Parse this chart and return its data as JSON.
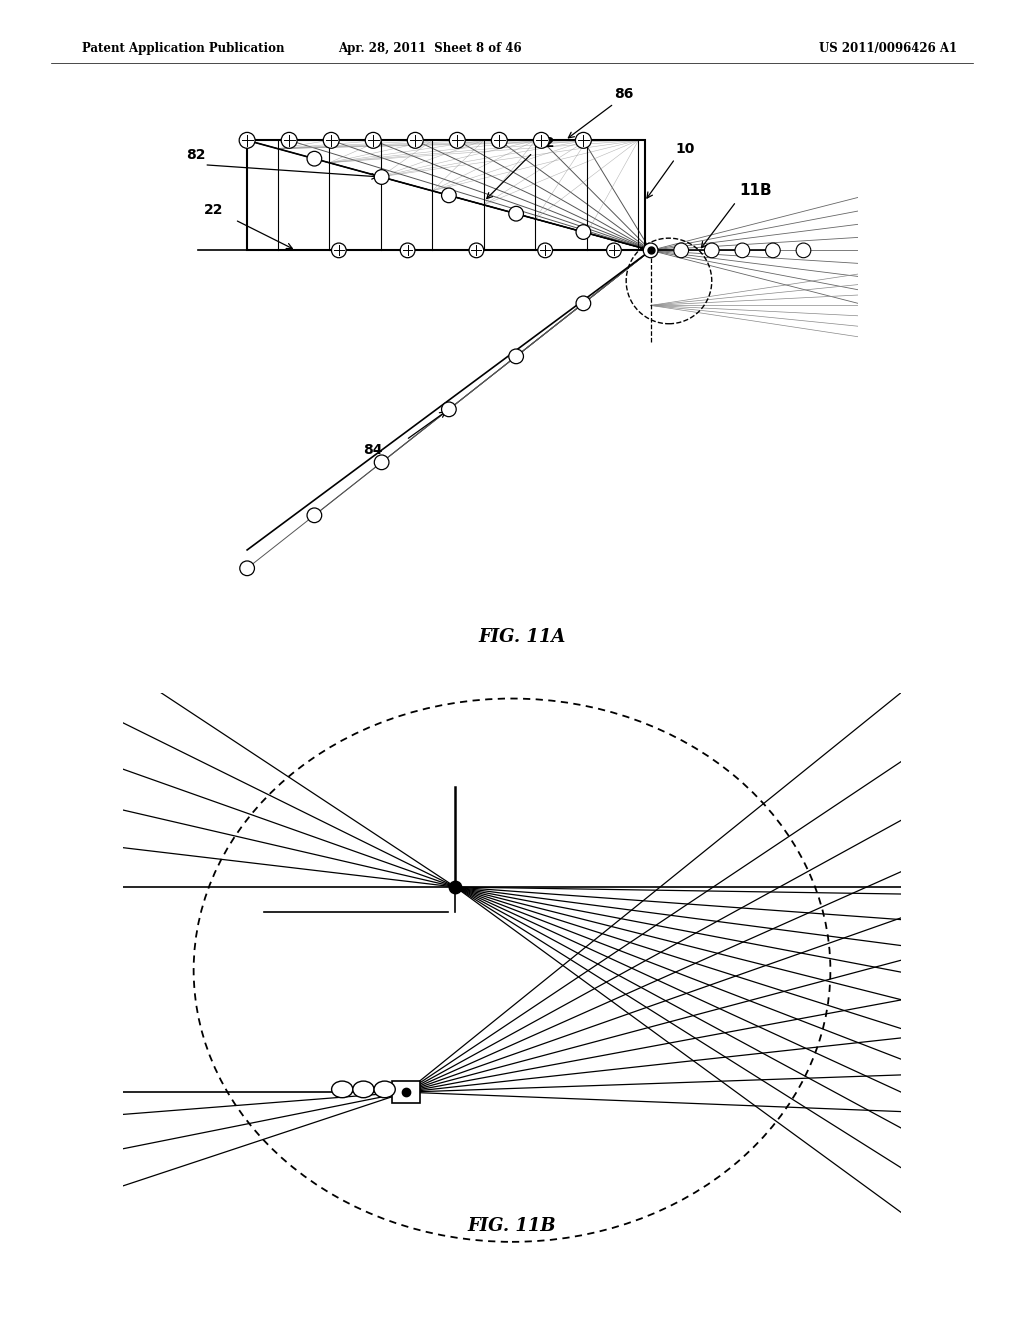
{
  "bg_color": "#ffffff",
  "header_left": "Patent Application Publication",
  "header_center": "Apr. 28, 2011  Sheet 8 of 46",
  "header_right": "US 2011/0096426 A1",
  "fig11a_title": "FIG. 11A",
  "fig11b_title": "FIG. 11B"
}
